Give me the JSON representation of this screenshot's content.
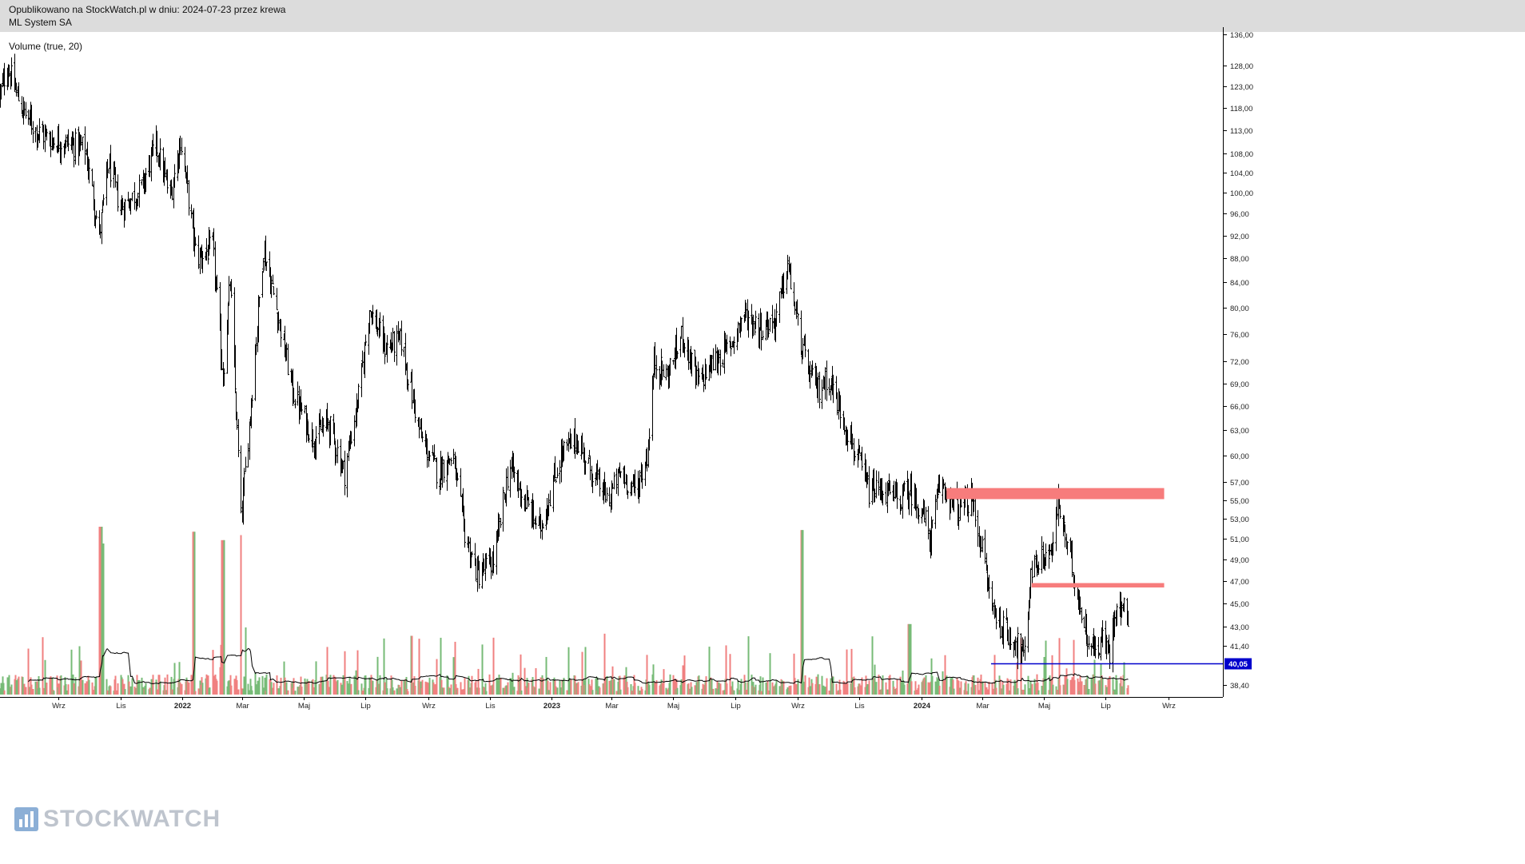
{
  "header": {
    "published": "Opublikowano na StockWatch.pl w dniu: 2024-07-23 przez krewa",
    "instrument": "ML System SA"
  },
  "indicator_label": "Volume (true, 20)",
  "watermark": {
    "text": "STOCKWATCH",
    "icon": "stockwatch-logo-icon"
  },
  "colors": {
    "candle": "#000000",
    "volume_up": "#77bb77",
    "volume_down": "#f08080",
    "resistance_zone": "#f77c7c",
    "support_line": "#0000cc",
    "price_badge": "#0000cc",
    "volume_ma": "#000000"
  },
  "chart_data": {
    "type": "line",
    "subtype": "candlestick-ohlc-with-volume",
    "title": "",
    "xlabel": "",
    "ylabel": "",
    "y_scale": "log",
    "ylim": [
      37.5,
      138
    ],
    "xlim": [
      "2021-07-05",
      "2024-10-25"
    ],
    "x_ticks": [
      {
        "date": "2021-09-01",
        "label": "Wrz"
      },
      {
        "date": "2021-11-01",
        "label": "Lis"
      },
      {
        "date": "2022-01-01",
        "label": "2022"
      },
      {
        "date": "2022-03-01",
        "label": "Mar"
      },
      {
        "date": "2022-05-01",
        "label": "Maj"
      },
      {
        "date": "2022-07-01",
        "label": "Lip"
      },
      {
        "date": "2022-09-01",
        "label": "Wrz"
      },
      {
        "date": "2022-11-01",
        "label": "Lis"
      },
      {
        "date": "2023-01-01",
        "label": "2023"
      },
      {
        "date": "2023-03-01",
        "label": "Mar"
      },
      {
        "date": "2023-05-01",
        "label": "Maj"
      },
      {
        "date": "2023-07-01",
        "label": "Lip"
      },
      {
        "date": "2023-09-01",
        "label": "Wrz"
      },
      {
        "date": "2023-11-01",
        "label": "Lis"
      },
      {
        "date": "2024-01-01",
        "label": "2024"
      },
      {
        "date": "2024-03-01",
        "label": "Mar"
      },
      {
        "date": "2024-05-01",
        "label": "Maj"
      },
      {
        "date": "2024-07-01",
        "label": "Lip"
      },
      {
        "date": "2024-09-01",
        "label": "Wrz"
      }
    ],
    "y_ticks": [
      "136,00",
      "128,00",
      "123,00",
      "118,00",
      "113,00",
      "108,00",
      "104,00",
      "100,00",
      "96,00",
      "92,00",
      "88,00",
      "84,00",
      "80,00",
      "76,00",
      "72,00",
      "69,00",
      "66,00",
      "63,00",
      "60,00",
      "57,00",
      "55,00",
      "53,00",
      "51,00",
      "49,00",
      "47,00",
      "45,00",
      "43,00",
      "41,40",
      "40,05",
      "38,40"
    ],
    "y_tick_values": [
      136,
      128,
      123,
      118,
      113,
      108,
      104,
      100,
      96,
      92,
      88,
      84,
      80,
      76,
      72,
      69,
      66,
      63,
      60,
      57,
      55,
      53,
      51,
      49,
      47,
      45,
      43,
      41.4,
      40.05,
      38.4
    ],
    "current_price": {
      "value": 40.05,
      "label": "40,05"
    },
    "price_path": [
      {
        "date": "2021-07-05",
        "close": 121
      },
      {
        "date": "2021-07-12",
        "close": 128
      },
      {
        "date": "2021-07-26",
        "close": 118
      },
      {
        "date": "2021-08-09",
        "close": 113
      },
      {
        "date": "2021-08-23",
        "close": 111
      },
      {
        "date": "2021-09-13",
        "close": 110
      },
      {
        "date": "2021-09-27",
        "close": 109
      },
      {
        "date": "2021-10-11",
        "close": 92
      },
      {
        "date": "2021-10-20",
        "close": 106
      },
      {
        "date": "2021-11-01",
        "close": 97
      },
      {
        "date": "2021-11-22",
        "close": 101
      },
      {
        "date": "2021-12-06",
        "close": 110
      },
      {
        "date": "2021-12-20",
        "close": 99
      },
      {
        "date": "2021-12-30",
        "close": 111
      },
      {
        "date": "2022-01-15",
        "close": 88
      },
      {
        "date": "2022-01-31",
        "close": 90
      },
      {
        "date": "2022-02-10",
        "close": 70
      },
      {
        "date": "2022-02-17",
        "close": 84
      },
      {
        "date": "2022-02-28",
        "close": 53
      },
      {
        "date": "2022-03-12",
        "close": 70
      },
      {
        "date": "2022-03-22",
        "close": 90
      },
      {
        "date": "2022-04-05",
        "close": 79
      },
      {
        "date": "2022-04-20",
        "close": 68
      },
      {
        "date": "2022-05-10",
        "close": 62
      },
      {
        "date": "2022-05-25",
        "close": 64
      },
      {
        "date": "2022-06-10",
        "close": 58
      },
      {
        "date": "2022-06-25",
        "close": 68
      },
      {
        "date": "2022-07-05",
        "close": 80
      },
      {
        "date": "2022-07-20",
        "close": 74
      },
      {
        "date": "2022-08-05",
        "close": 75
      },
      {
        "date": "2022-08-25",
        "close": 62
      },
      {
        "date": "2022-09-10",
        "close": 58
      },
      {
        "date": "2022-09-25",
        "close": 60
      },
      {
        "date": "2022-10-08",
        "close": 51
      },
      {
        "date": "2022-10-20",
        "close": 47.5
      },
      {
        "date": "2022-11-05",
        "close": 49
      },
      {
        "date": "2022-11-20",
        "close": 59
      },
      {
        "date": "2022-12-05",
        "close": 55
      },
      {
        "date": "2022-12-20",
        "close": 52
      },
      {
        "date": "2023-01-10",
        "close": 60
      },
      {
        "date": "2023-01-25",
        "close": 62
      },
      {
        "date": "2023-02-10",
        "close": 58
      },
      {
        "date": "2023-02-25",
        "close": 55
      },
      {
        "date": "2023-03-10",
        "close": 58
      },
      {
        "date": "2023-03-25",
        "close": 56
      },
      {
        "date": "2023-04-05",
        "close": 60
      },
      {
        "date": "2023-04-12",
        "close": 72
      },
      {
        "date": "2023-04-25",
        "close": 70
      },
      {
        "date": "2023-05-10",
        "close": 76
      },
      {
        "date": "2023-05-25",
        "close": 69
      },
      {
        "date": "2023-06-10",
        "close": 72
      },
      {
        "date": "2023-06-25",
        "close": 74
      },
      {
        "date": "2023-07-10",
        "close": 79
      },
      {
        "date": "2023-07-25",
        "close": 77
      },
      {
        "date": "2023-08-10",
        "close": 78
      },
      {
        "date": "2023-08-22",
        "close": 87
      },
      {
        "date": "2023-09-01",
        "close": 77
      },
      {
        "date": "2023-09-08",
        "close": 72
      },
      {
        "date": "2023-09-20",
        "close": 68
      },
      {
        "date": "2023-10-01",
        "close": 70
      },
      {
        "date": "2023-10-20",
        "close": 63
      },
      {
        "date": "2023-11-10",
        "close": 56
      },
      {
        "date": "2023-11-25",
        "close": 56
      },
      {
        "date": "2023-12-10",
        "close": 55
      },
      {
        "date": "2023-12-20",
        "close": 56
      },
      {
        "date": "2024-01-01",
        "close": 54
      },
      {
        "date": "2024-01-10",
        "close": 51
      },
      {
        "date": "2024-01-20",
        "close": 57
      },
      {
        "date": "2024-02-05",
        "close": 54
      },
      {
        "date": "2024-02-20",
        "close": 55
      },
      {
        "date": "2024-03-01",
        "close": 50
      },
      {
        "date": "2024-03-10",
        "close": 45
      },
      {
        "date": "2024-03-20",
        "close": 43
      },
      {
        "date": "2024-04-01",
        "close": 42
      },
      {
        "date": "2024-04-12",
        "close": 40.5
      },
      {
        "date": "2024-04-18",
        "close": 48
      },
      {
        "date": "2024-04-28",
        "close": 49
      },
      {
        "date": "2024-05-10",
        "close": 50
      },
      {
        "date": "2024-05-15",
        "close": 55
      },
      {
        "date": "2024-05-22",
        "close": 51
      },
      {
        "date": "2024-06-01",
        "close": 47
      },
      {
        "date": "2024-06-10",
        "close": 43
      },
      {
        "date": "2024-06-20",
        "close": 41
      },
      {
        "date": "2024-06-28",
        "close": 42
      },
      {
        "date": "2024-07-05",
        "close": 40.8
      },
      {
        "date": "2024-07-12",
        "close": 45.5
      },
      {
        "date": "2024-07-18",
        "close": 44.5
      },
      {
        "date": "2024-07-23",
        "close": 44
      }
    ],
    "annotations": [
      {
        "kind": "zone",
        "from_date": "2024-01-26",
        "to_date": "2024-08-28",
        "y_low": 55.1,
        "y_high": 56.3
      },
      {
        "kind": "zone",
        "from_date": "2024-04-19",
        "to_date": "2024-08-28",
        "y_low": 46.4,
        "y_high": 46.8
      },
      {
        "kind": "line",
        "from_date": "2024-03-10",
        "to_date": "2024-10-20",
        "y": 40.05
      }
    ],
    "volume": {
      "label": "Volume (true, 20)",
      "ma_period": 20,
      "spikes": [
        {
          "date": "2021-10-12",
          "value": 100
        },
        {
          "date": "2021-10-16",
          "value": 90
        },
        {
          "date": "2022-01-12",
          "value": 97
        },
        {
          "date": "2022-02-10",
          "value": 92
        },
        {
          "date": "2022-02-27",
          "value": 95
        },
        {
          "date": "2022-03-05",
          "value": 40
        },
        {
          "date": "2023-09-05",
          "value": 98
        },
        {
          "date": "2022-08-15",
          "value": 35
        },
        {
          "date": "2023-12-20",
          "value": 42
        }
      ]
    }
  }
}
